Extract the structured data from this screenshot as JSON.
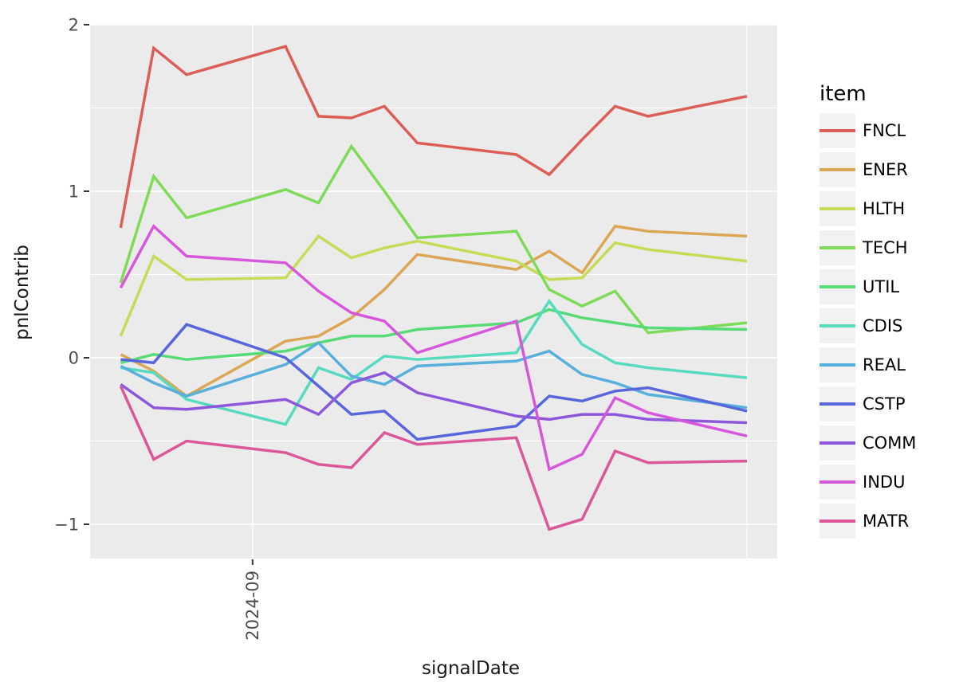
{
  "chart_data": {
    "type": "line",
    "title": "",
    "xlabel": "signalDate",
    "ylabel": "pnlContrib",
    "legend_title": "item",
    "legend_position": "right",
    "grid": true,
    "x_dates": [
      "2024-08-28",
      "2024-08-29",
      "2024-08-30",
      "2024-09-02",
      "2024-09-03",
      "2024-09-04",
      "2024-09-05",
      "2024-09-06",
      "2024-09-09",
      "2024-09-10",
      "2024-09-11",
      "2024-09-12",
      "2024-09-13",
      "2024-09-16"
    ],
    "series": [
      {
        "name": "FNCL",
        "color": "#db5f57",
        "values": [
          0.78,
          1.86,
          1.7,
          1.87,
          1.45,
          1.44,
          1.51,
          1.29,
          1.22,
          1.1,
          1.31,
          1.51,
          1.45,
          1.57
        ]
      },
      {
        "name": "ENER",
        "color": "#dba757",
        "values": [
          0.02,
          -0.08,
          -0.23,
          0.1,
          0.13,
          0.24,
          0.41,
          0.62,
          0.53,
          0.64,
          0.51,
          0.79,
          0.76,
          0.73
        ]
      },
      {
        "name": "HLTH",
        "color": "#c7db57",
        "values": [
          0.13,
          0.61,
          0.47,
          0.48,
          0.73,
          0.6,
          0.66,
          0.7,
          0.58,
          0.47,
          0.48,
          0.69,
          0.65,
          0.58
        ]
      },
      {
        "name": "TECH",
        "color": "#7edb57",
        "values": [
          0.45,
          1.09,
          0.84,
          1.01,
          0.93,
          1.27,
          1.0,
          0.72,
          0.76,
          0.41,
          0.31,
          0.4,
          0.15,
          0.21
        ]
      },
      {
        "name": "UTIL",
        "color": "#57db77",
        "values": [
          -0.03,
          0.02,
          -0.01,
          0.04,
          0.09,
          0.13,
          0.13,
          0.17,
          0.21,
          0.29,
          0.24,
          0.21,
          0.18,
          0.17
        ]
      },
      {
        "name": "CDIS",
        "color": "#57dbbf",
        "values": [
          -0.06,
          -0.09,
          -0.25,
          -0.4,
          -0.06,
          -0.13,
          0.01,
          -0.01,
          0.03,
          0.34,
          0.08,
          -0.03,
          -0.06,
          -0.12
        ]
      },
      {
        "name": "REAL",
        "color": "#57afdb",
        "values": [
          -0.05,
          -0.15,
          -0.23,
          -0.04,
          0.09,
          -0.11,
          -0.16,
          -0.05,
          -0.02,
          0.04,
          -0.1,
          -0.15,
          -0.22,
          -0.3
        ]
      },
      {
        "name": "CSTP",
        "color": "#5767db",
        "values": [
          -0.01,
          -0.03,
          0.2,
          0.0,
          -0.17,
          -0.34,
          -0.32,
          -0.49,
          -0.41,
          -0.23,
          -0.26,
          -0.2,
          -0.18,
          -0.32
        ]
      },
      {
        "name": "COMM",
        "color": "#8e57db",
        "values": [
          -0.16,
          -0.3,
          -0.31,
          -0.25,
          -0.34,
          -0.15,
          -0.09,
          -0.21,
          -0.35,
          -0.37,
          -0.34,
          -0.34,
          -0.37,
          -0.39
        ]
      },
      {
        "name": "INDU",
        "color": "#d657db",
        "values": [
          0.42,
          0.79,
          0.61,
          0.57,
          0.4,
          0.27,
          0.22,
          0.03,
          0.22,
          -0.67,
          -0.58,
          -0.24,
          -0.33,
          -0.47
        ]
      },
      {
        "name": "MATR",
        "color": "#db5798",
        "values": [
          -0.17,
          -0.61,
          -0.5,
          -0.57,
          -0.64,
          -0.66,
          -0.45,
          -0.52,
          -0.48,
          -1.03,
          -0.97,
          -0.56,
          -0.63,
          -0.62
        ]
      }
    ],
    "y_ticks": {
      "values": [
        2,
        1,
        0,
        -1
      ],
      "labels": [
        "2",
        "1",
        "0",
        "−1"
      ]
    },
    "y_minor": [
      1.5,
      0.5,
      -0.5
    ],
    "x_major_tick": {
      "date": "2024-09-01",
      "label": "2024-09"
    },
    "x_minor_dates": [
      "2024-09-16"
    ],
    "ylim": [
      -1.206,
      2.005
    ],
    "colors": {
      "panel_bg": "#ebebeb",
      "grid": "#ffffff",
      "tick": "#333333",
      "tick_label": "#4d4d4d",
      "axis_title": "#1a1a1a",
      "legend_key_bg": "#f2f2f2",
      "legend_text": "#000000"
    }
  }
}
